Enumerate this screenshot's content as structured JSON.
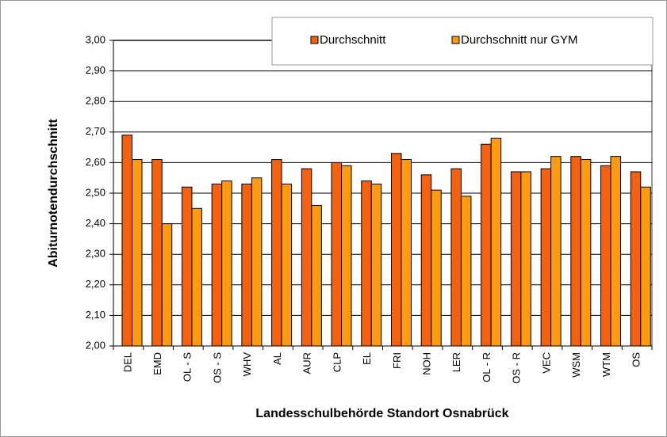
{
  "chart_data": {
    "type": "bar",
    "x_label": "Landesschulbehörde Standort Osnabrück",
    "y_label": "Abiturnotendurchschnitt",
    "categories": [
      "DEL",
      "EMD",
      "OL - S",
      "OS - S",
      "WHV",
      "AL",
      "AUR",
      "CLP",
      "EL",
      "FRI",
      "NOH",
      "LER",
      "OL - R",
      "OS - R",
      "VEC",
      "WSM",
      "WTM",
      "OS"
    ],
    "series": [
      {
        "name": "Durchschnitt",
        "color": "#f5620f",
        "values": [
          2.69,
          2.61,
          2.52,
          2.53,
          2.53,
          2.61,
          2.58,
          2.6,
          2.54,
          2.63,
          2.56,
          2.58,
          2.66,
          2.57,
          2.58,
          2.62,
          2.59,
          2.57
        ]
      },
      {
        "name": "Durchschnitt  nur GYM",
        "color": "#ff9b10",
        "values": [
          2.61,
          2.4,
          2.45,
          2.54,
          2.55,
          2.53,
          2.46,
          2.59,
          2.53,
          2.61,
          2.51,
          2.49,
          2.68,
          2.57,
          2.62,
          2.61,
          2.62,
          2.52
        ]
      }
    ],
    "ylim": [
      2.0,
      3.0
    ],
    "yticks": [
      {
        "value": 2.0,
        "label": "2,00"
      },
      {
        "value": 2.1,
        "label": "2,10"
      },
      {
        "value": 2.2,
        "label": "2,20"
      },
      {
        "value": 2.3,
        "label": "2,30"
      },
      {
        "value": 2.4,
        "label": "2,40"
      },
      {
        "value": 2.5,
        "label": "2,50"
      },
      {
        "value": 2.6,
        "label": "2,60"
      },
      {
        "value": 2.7,
        "label": "2,70"
      },
      {
        "value": 2.8,
        "label": "2,80"
      },
      {
        "value": 2.9,
        "label": "2,90"
      },
      {
        "value": 3.0,
        "label": "3,00"
      }
    ],
    "grid": true,
    "legend": "top"
  }
}
